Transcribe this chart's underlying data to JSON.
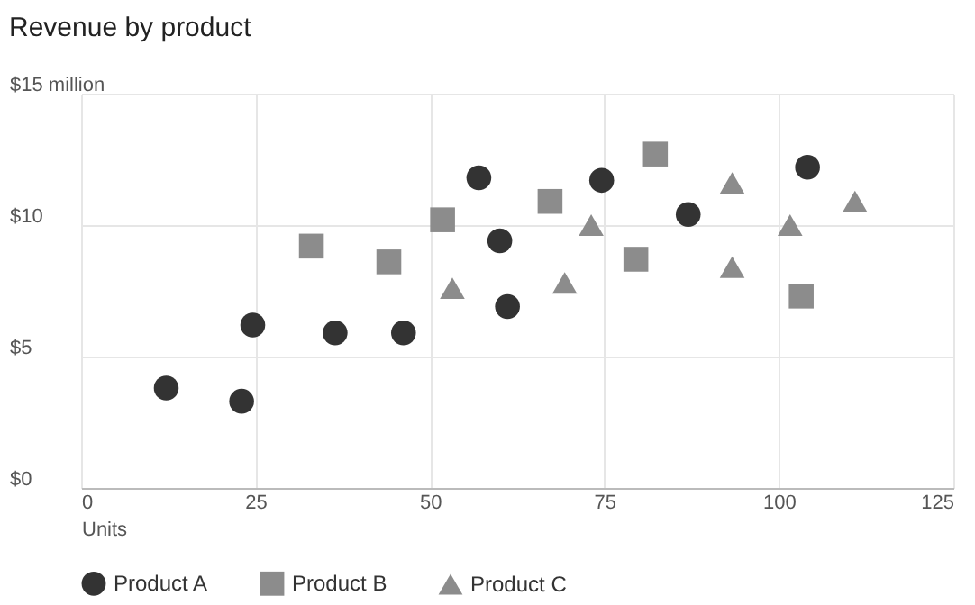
{
  "chart_data": {
    "type": "scatter",
    "title": "Revenue by product",
    "xlabel": "Units",
    "xlim": [
      0,
      125
    ],
    "xticks": [
      0,
      25,
      50,
      75,
      100,
      125
    ],
    "ylim": [
      0,
      15
    ],
    "yticks": [
      {
        "value": 0,
        "label": "$0"
      },
      {
        "value": 5,
        "label": "$5"
      },
      {
        "value": 10,
        "label": "$10"
      },
      {
        "value": 15,
        "label": "$15 million"
      }
    ],
    "grid": true,
    "legend": "bottom",
    "series": [
      {
        "name": "Product A",
        "color": "#333333",
        "marker": "circle",
        "x": [
          12.2,
          23,
          24.6,
          36.4,
          46.2,
          57,
          60,
          61.1,
          74.6,
          87,
          104.1
        ],
        "values": [
          3.8,
          3.3,
          6.2,
          5.9,
          5.9,
          11.8,
          9.4,
          6.9,
          11.7,
          10.4,
          12.2
        ]
      },
      {
        "name": "Product B",
        "color": "#8c8c8c",
        "marker": "square",
        "x": [
          33,
          44.1,
          51.8,
          67.2,
          79.5,
          82.3,
          103.2
        ],
        "values": [
          9.2,
          8.6,
          10.2,
          10.9,
          8.7,
          12.7,
          7.3
        ]
      },
      {
        "name": "Product C",
        "color": "#8c8c8c",
        "marker": "triangle",
        "x": [
          53.2,
          69.3,
          73.1,
          93.3,
          93.3,
          101.6,
          110.9
        ],
        "values": [
          7.6,
          7.8,
          10.0,
          11.6,
          8.4,
          10.0,
          10.9
        ]
      }
    ]
  }
}
